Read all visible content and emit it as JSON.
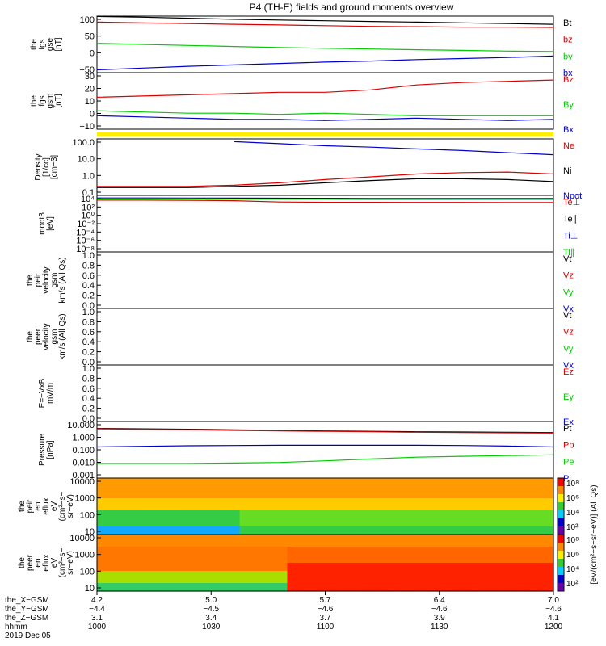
{
  "title": "P4 (TH-E) fields and ground moments overview",
  "colors": {
    "black": "#000000",
    "red": "#dd0000",
    "green": "#00cc00",
    "blue": "#0000cc",
    "yellow": "#ffee00",
    "magenta": "#cc00cc"
  },
  "chart_data": [
    {
      "id": "fgs-gse",
      "type": "line",
      "ylabel": [
        "the",
        "fgs",
        "gse",
        "[nT]"
      ],
      "yticks": [
        "100",
        "50",
        "0",
        "−50"
      ],
      "ylim": [
        -55,
        105
      ],
      "x": [
        0,
        10,
        20,
        30,
        40,
        50,
        60,
        70,
        80,
        90,
        100
      ],
      "series": [
        {
          "name": "Bt",
          "color": "black",
          "values": [
            104,
            102,
            99,
            96,
            94,
            92,
            90,
            88,
            86,
            84,
            82
          ]
        },
        {
          "name": "bz",
          "color": "red",
          "values": [
            88,
            86,
            84,
            82,
            80,
            78,
            76,
            75,
            74,
            74,
            73
          ]
        },
        {
          "name": "by",
          "color": "green",
          "values": [
            28,
            25,
            22,
            19,
            16,
            14,
            12,
            10,
            8,
            6,
            5
          ]
        },
        {
          "name": "bx",
          "color": "blue",
          "values": [
            -47,
            -42,
            -37,
            -33,
            -29,
            -25,
            -22,
            -18,
            -15,
            -12,
            -8
          ]
        }
      ]
    },
    {
      "id": "fgs-gsm",
      "type": "line",
      "ylabel": [
        "the",
        "fgs",
        "gsm",
        "[nT]"
      ],
      "yticks": [
        "30",
        "20",
        "10",
        "0",
        "−10"
      ],
      "ylim": [
        -14,
        32
      ],
      "x": [
        0,
        10,
        20,
        30,
        40,
        50,
        60,
        70,
        80,
        90,
        100
      ],
      "series": [
        {
          "name": "Bz",
          "color": "red",
          "values": [
            12,
            13,
            14,
            15,
            16,
            16,
            18,
            22,
            24,
            25,
            26
          ]
        },
        {
          "name": "By",
          "color": "green",
          "values": [
            1,
            0,
            -1,
            -1,
            -2,
            -1,
            -2,
            -3,
            -3,
            -3,
            -3
          ]
        },
        {
          "name": "Bx",
          "color": "blue",
          "values": [
            -3,
            -4,
            -5,
            -6,
            -6,
            -7,
            -6,
            -5,
            -6,
            -7,
            -6
          ]
        }
      ]
    },
    {
      "id": "density",
      "type": "line",
      "ylabel": [
        "Density",
        "[1/cc]",
        "[cm−3]"
      ],
      "yticks": [
        "100.0",
        "10.0",
        "1.0",
        "0.1"
      ],
      "ylim": [
        0.08,
        300
      ],
      "yscale": "log",
      "x": [
        0,
        10,
        20,
        30,
        40,
        50,
        60,
        70,
        80,
        90,
        100
      ],
      "series": [
        {
          "name": "Ne",
          "color": "red",
          "values": [
            0.3,
            0.3,
            0.3,
            0.35,
            0.5,
            0.8,
            1.2,
            1.8,
            2.2,
            2.4,
            1.8
          ]
        },
        {
          "name": "Ni",
          "color": "black",
          "values": [
            0.25,
            0.25,
            0.25,
            0.3,
            0.35,
            0.5,
            0.7,
            0.9,
            0.9,
            0.8,
            0.6
          ]
        },
        {
          "name": "Npot",
          "color": "blue",
          "values": [
            null,
            null,
            null,
            200,
            150,
            110,
            90,
            70,
            55,
            40,
            30
          ]
        }
      ]
    },
    {
      "id": "temperature",
      "type": "line",
      "ylabel": [
        "moqt3",
        "[eV]"
      ],
      "yticks": [
        "10⁴",
        "10²",
        "10⁰",
        "10⁻²",
        "10⁻⁴",
        "10⁻⁶",
        "10⁻⁸"
      ],
      "ylim": [
        1e-08,
        100000.0
      ],
      "yscale": "log",
      "x": [
        0,
        10,
        20,
        30,
        40,
        50,
        60,
        70,
        80,
        90,
        100
      ],
      "series": [
        {
          "name": "Te⊥",
          "color": "red",
          "values": [
            8000,
            8000,
            7500,
            6000,
            3000,
            2500,
            2500,
            2400,
            2400,
            2300,
            2300
          ]
        },
        {
          "name": "Te∥",
          "color": "black",
          "values": [
            null,
            null,
            null,
            null,
            null,
            null,
            null,
            null,
            null,
            null,
            null
          ]
        },
        {
          "name": "Ti⊥",
          "color": "blue",
          "values": [
            25000,
            25000,
            24000,
            23000,
            22000,
            21000,
            20000,
            20000,
            19000,
            19000,
            19000
          ]
        },
        {
          "name": "Ti∥",
          "color": "green",
          "values": [
            15000,
            15000,
            15000,
            14000,
            13000,
            13000,
            12000,
            12000,
            12000,
            12000,
            12000
          ]
        }
      ]
    },
    {
      "id": "peir-velocity",
      "type": "line",
      "ylabel": [
        "the",
        "peir",
        "velocity",
        "gsm",
        "km/s (All Qs)"
      ],
      "yticks": [
        "1.0",
        "0.8",
        "0.6",
        "0.4",
        "0.2",
        "0.0"
      ],
      "ylim": [
        0,
        1
      ],
      "series": [
        {
          "name": "Vt",
          "color": "black"
        },
        {
          "name": "Vz",
          "color": "red"
        },
        {
          "name": "Vy",
          "color": "green"
        },
        {
          "name": "Vx",
          "color": "blue"
        }
      ]
    },
    {
      "id": "peer-velocity",
      "type": "line",
      "ylabel": [
        "the",
        "peer",
        "velocity",
        "gsm",
        "km/s (All Qs)"
      ],
      "yticks": [
        "1.0",
        "0.8",
        "0.6",
        "0.4",
        "0.2",
        "0.0"
      ],
      "ylim": [
        0,
        1
      ],
      "series": [
        {
          "name": "Vt",
          "color": "black"
        },
        {
          "name": "Vz",
          "color": "red"
        },
        {
          "name": "Vy",
          "color": "green"
        },
        {
          "name": "Vx",
          "color": "blue"
        }
      ]
    },
    {
      "id": "efield",
      "type": "line",
      "ylabel": [
        "E=−VxB",
        "mV/m"
      ],
      "yticks": [
        "1.0",
        "0.8",
        "0.6",
        "0.4",
        "0.2",
        "0.0"
      ],
      "ylim": [
        0,
        1
      ],
      "series": [
        {
          "name": "Ez",
          "color": "red"
        },
        {
          "name": "Ey",
          "color": "green"
        },
        {
          "name": "Ex",
          "color": "blue"
        }
      ]
    },
    {
      "id": "pressure",
      "type": "line",
      "ylabel": [
        "Pressure",
        "[nPa]"
      ],
      "yticks": [
        "10.000",
        "1.000",
        "0.100",
        "0.010",
        "0.001"
      ],
      "ylim": [
        0.0008,
        15
      ],
      "yscale": "log",
      "x": [
        0,
        10,
        20,
        30,
        40,
        50,
        60,
        70,
        80,
        90,
        100
      ],
      "series": [
        {
          "name": "Pt",
          "color": "black",
          "values": [
            4.5,
            4.2,
            3.9,
            3.5,
            3.2,
            2.9,
            2.7,
            2.5,
            2.4,
            2.3,
            2.2
          ]
        },
        {
          "name": "Pb",
          "color": "red",
          "values": [
            4.2,
            3.9,
            3.6,
            3.2,
            2.9,
            2.7,
            2.5,
            2.3,
            2.2,
            2.1,
            2.0
          ]
        },
        {
          "name": "Pe",
          "color": "green",
          "values": [
            0.01,
            0.01,
            0.01,
            0.011,
            0.012,
            0.016,
            0.022,
            0.03,
            0.035,
            0.04,
            0.045
          ]
        },
        {
          "name": "Pi",
          "color": "blue",
          "values": [
            0.18,
            0.2,
            0.22,
            0.23,
            0.24,
            0.24,
            0.24,
            0.24,
            0.23,
            0.21,
            0.18
          ]
        }
      ]
    },
    {
      "id": "peir-spectrogram",
      "type": "heatmap",
      "ylabel": [
        "the",
        "peir",
        "en",
        "eflux",
        "eV",
        "(cm²−s−",
        "sr−eV)"
      ],
      "yticks": [
        "10000",
        "1000",
        "100",
        "10"
      ]
    },
    {
      "id": "peer-spectrogram",
      "type": "heatmap",
      "ylabel": [
        "the",
        "peer",
        "en",
        "eflux",
        "eV",
        "(cm²−s−",
        "sr−eV)"
      ],
      "yticks": [
        "10000",
        "1000",
        "100",
        "10"
      ]
    }
  ],
  "colorbar": {
    "ticks": [
      "10⁸",
      "10⁶",
      "10⁴",
      "10²",
      "10⁸",
      "10⁶",
      "10⁴",
      "10²"
    ],
    "label": "[eV/(cm²−s−sr−eV)] (All Qs)"
  },
  "ephemeris": {
    "labels": [
      "the_X−GSM",
      "the_Y−GSM",
      "the_Z−GSM",
      "hhmm"
    ],
    "columns": [
      [
        "4.2",
        "−4.4",
        "3.1",
        "1000"
      ],
      [
        "5.0",
        "−4.5",
        "3.4",
        "1030"
      ],
      [
        "5.7",
        "−4.6",
        "3.7",
        "1100"
      ],
      [
        "6.4",
        "−4.6",
        "3.9",
        "1130"
      ],
      [
        "7.0",
        "−4.6",
        "4.1",
        "1200"
      ]
    ],
    "date": "2019 Dec 05"
  }
}
